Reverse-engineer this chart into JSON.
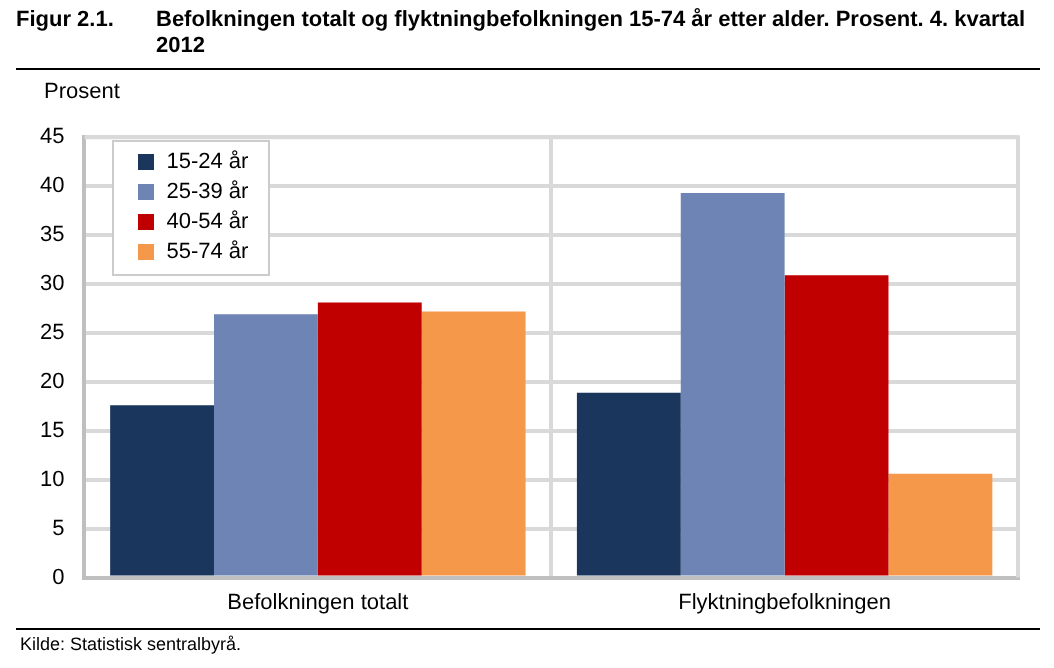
{
  "chart_data": {
    "type": "bar",
    "title": "Figur 2.1.",
    "subtitle": "Befolkningen totalt og flyktningbefolkningen 15-74 år etter alder. Prosent. 4. kvartal 2012",
    "ylabel": "Prosent",
    "categories": [
      "Befolkningen totalt",
      "Flyktningbefolkningen"
    ],
    "series": [
      {
        "name": "15-24 år",
        "color": "#1a365d",
        "values": [
          17.6,
          18.9
        ]
      },
      {
        "name": "25-39 år",
        "color": "#6e84b5",
        "values": [
          26.9,
          39.3
        ]
      },
      {
        "name": "40-54 år",
        "color": "#c00000",
        "values": [
          28.1,
          30.9
        ]
      },
      {
        "name": "55-74 år",
        "color": "#f5984a",
        "values": [
          27.2,
          10.6
        ]
      }
    ],
    "ylim": [
      0,
      45
    ],
    "yticks": [
      0,
      5,
      10,
      15,
      20,
      25,
      30,
      35,
      40,
      45
    ],
    "grid": true,
    "legend": "top left",
    "annotations": [
      "Kilde: Statistisk sentralbyrå."
    ]
  }
}
